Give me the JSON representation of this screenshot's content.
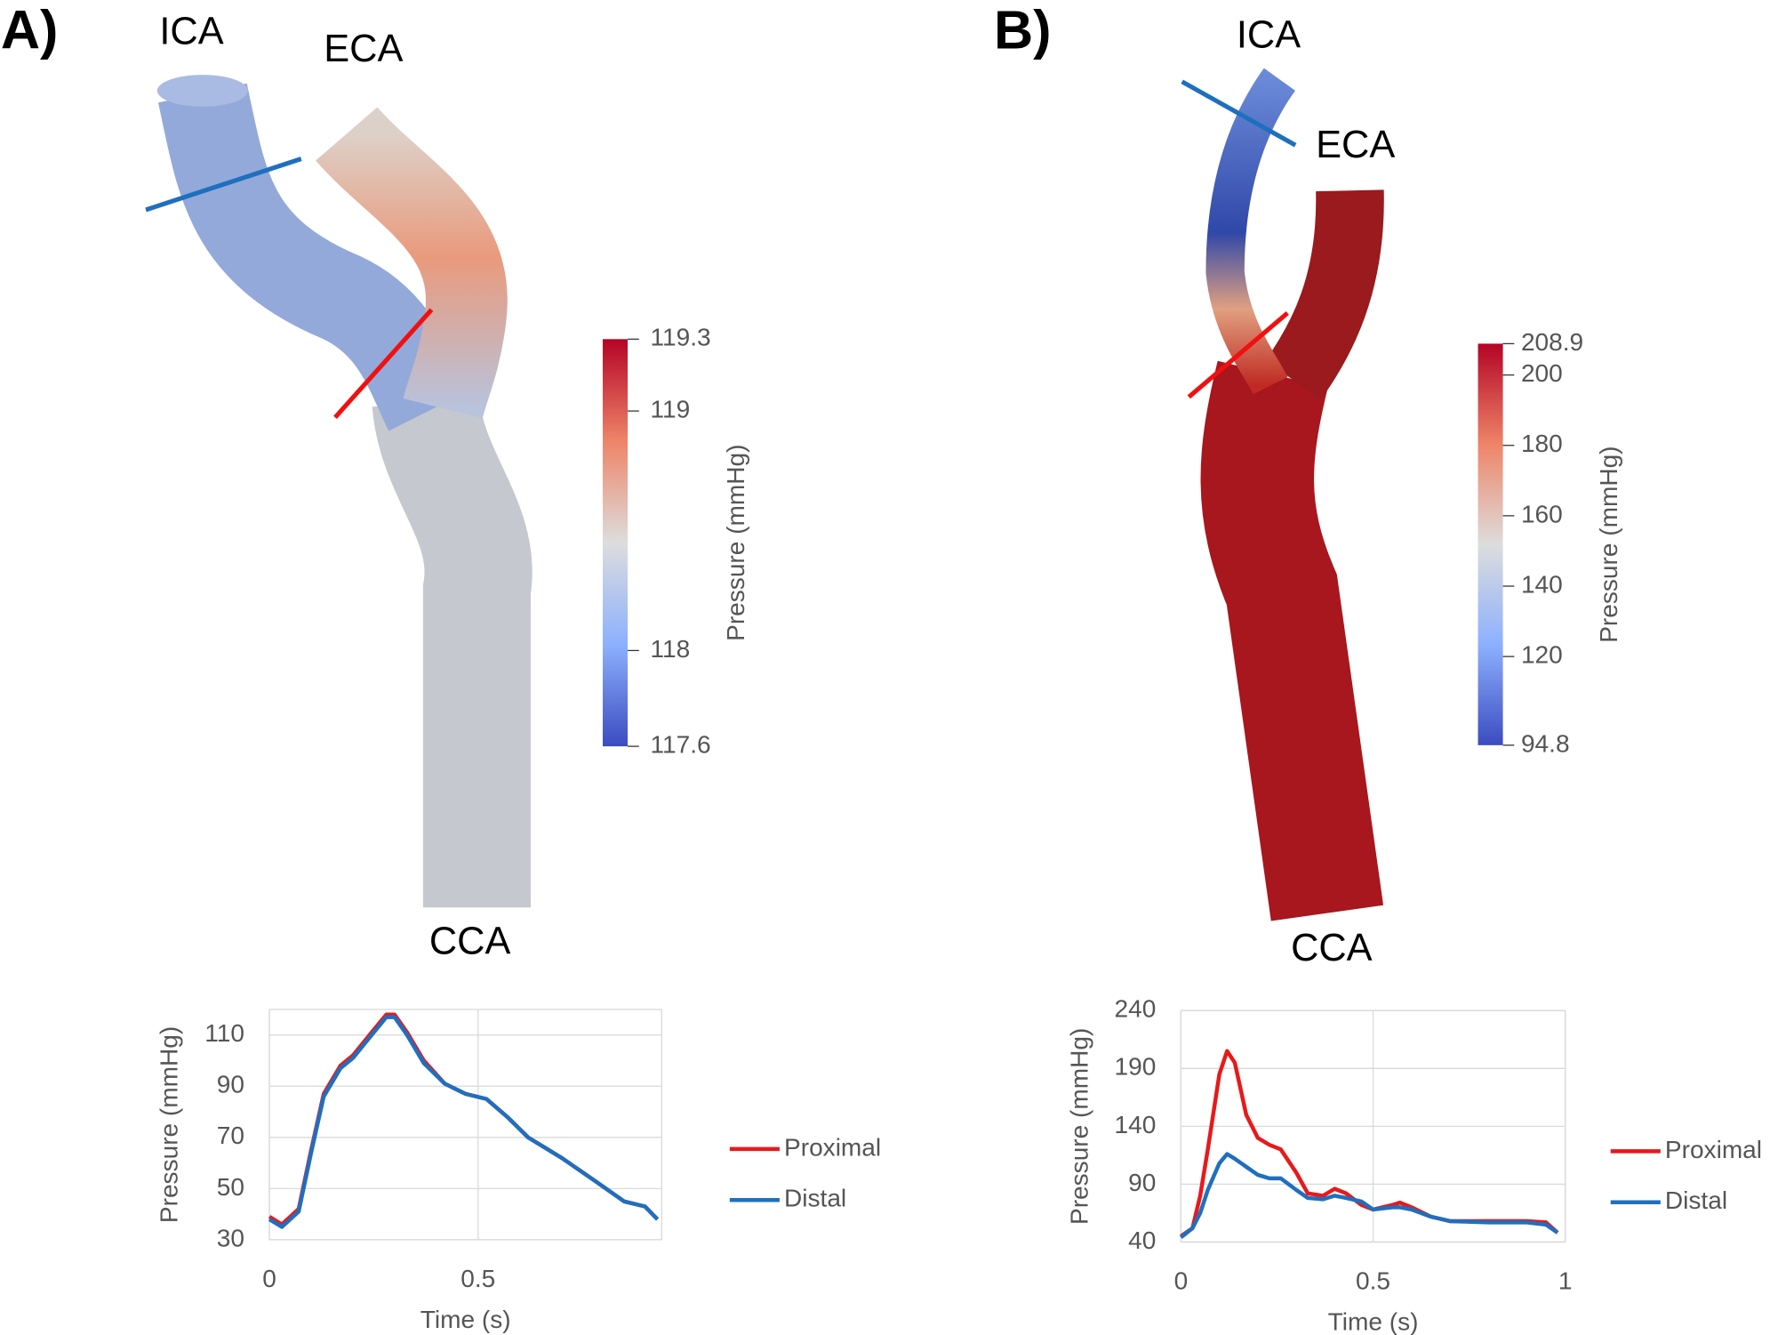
{
  "panels": [
    {
      "label": "A)",
      "vessel_labels": [
        "ICA",
        "ECA",
        "CCA"
      ],
      "colorbar": {
        "label": "Pressure (mmHg)",
        "lim": [
          117.6,
          119.3
        ],
        "ticks": [
          117.6,
          118,
          119,
          119.3
        ]
      }
    },
    {
      "label": "B)",
      "vessel_labels": [
        "ICA",
        "ECA",
        "CCA"
      ],
      "colorbar": {
        "label": "Pressure (mmHg)",
        "lim": [
          94.8,
          208.9
        ],
        "ticks": [
          94.8,
          120,
          140,
          160,
          180,
          200,
          208.9
        ]
      }
    }
  ],
  "chart_data": [
    {
      "type": "line",
      "xlabel": "Time (s)",
      "ylabel": "Pressure (mmHg)",
      "grid": true,
      "legend": "right",
      "xlim": [
        0,
        0.94
      ],
      "xticks": [
        0,
        0.5
      ],
      "ylim": [
        30,
        120
      ],
      "yticks": [
        30,
        50,
        70,
        90,
        110
      ],
      "x": [
        0,
        0.03,
        0.07,
        0.1,
        0.13,
        0.17,
        0.2,
        0.25,
        0.28,
        0.3,
        0.33,
        0.37,
        0.42,
        0.47,
        0.52,
        0.57,
        0.62,
        0.7,
        0.78,
        0.85,
        0.9,
        0.93
      ],
      "series": [
        {
          "name": "Proximal",
          "color": "#e8191b",
          "values": [
            39,
            36,
            42,
            65,
            87,
            98,
            102,
            112,
            118,
            118,
            111,
            100,
            91,
            87,
            85,
            78,
            70,
            62,
            53,
            45,
            43,
            38
          ]
        },
        {
          "name": "Distal",
          "color": "#1f6fbf",
          "values": [
            38,
            35,
            41,
            64,
            86,
            97,
            101,
            111,
            117,
            117,
            110,
            99,
            91,
            87,
            85,
            78,
            70,
            62,
            53,
            45,
            43,
            38
          ]
        }
      ]
    },
    {
      "type": "line",
      "xlabel": "Time (s)",
      "ylabel": "Pressure (mmHg)",
      "grid": true,
      "legend": "right",
      "xlim": [
        0,
        1
      ],
      "xticks": [
        0,
        0.5,
        1
      ],
      "ylim": [
        40,
        240
      ],
      "yticks": [
        40,
        90,
        140,
        190,
        240
      ],
      "x": [
        0,
        0.03,
        0.05,
        0.07,
        0.1,
        0.12,
        0.14,
        0.17,
        0.2,
        0.23,
        0.26,
        0.3,
        0.33,
        0.37,
        0.4,
        0.43,
        0.47,
        0.5,
        0.55,
        0.57,
        0.6,
        0.65,
        0.7,
        0.8,
        0.9,
        0.95,
        0.98
      ],
      "series": [
        {
          "name": "Proximal",
          "color": "#e8191b",
          "values": [
            45,
            52,
            80,
            120,
            185,
            205,
            195,
            150,
            130,
            124,
            120,
            100,
            82,
            80,
            86,
            82,
            72,
            68,
            72,
            74,
            70,
            62,
            58,
            58,
            58,
            57,
            48
          ]
        },
        {
          "name": "Distal",
          "color": "#1f6fbf",
          "values": [
            44,
            52,
            65,
            85,
            108,
            116,
            112,
            105,
            98,
            95,
            95,
            85,
            78,
            77,
            80,
            78,
            75,
            68,
            70,
            70,
            68,
            62,
            58,
            57,
            57,
            55,
            48
          ]
        }
      ]
    }
  ]
}
